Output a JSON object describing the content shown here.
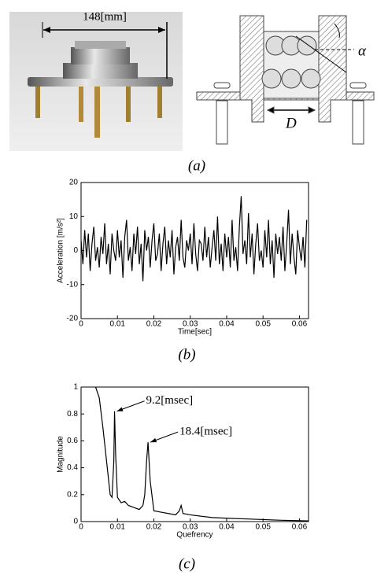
{
  "figure_a": {
    "dimension_label": "148[mm]",
    "angle_label": "α",
    "diameter_label": "D",
    "caption": "(a)"
  },
  "chart_data": [
    {
      "type": "line",
      "caption": "(b)",
      "xlabel": "Time[sec]",
      "ylabel": "Acceleration [m/s²]",
      "color": "#000000",
      "xlim": [
        0,
        0.0625
      ],
      "ylim": [
        -20,
        20
      ],
      "xticks": [
        0,
        0.01,
        0.02,
        0.03,
        0.04,
        0.05,
        0.06
      ],
      "yticks": [
        -20,
        -10,
        0,
        10,
        20
      ],
      "x": [
        0,
        0.0005,
        0.001,
        0.0015,
        0.002,
        0.0025,
        0.003,
        0.0035,
        0.004,
        0.0045,
        0.005,
        0.0055,
        0.006,
        0.0065,
        0.007,
        0.0075,
        0.008,
        0.0085,
        0.009,
        0.0095,
        0.01,
        0.0105,
        0.011,
        0.0115,
        0.012,
        0.0125,
        0.013,
        0.0135,
        0.014,
        0.0145,
        0.015,
        0.0155,
        0.016,
        0.0165,
        0.017,
        0.0175,
        0.018,
        0.0185,
        0.019,
        0.0195,
        0.02,
        0.0205,
        0.021,
        0.0215,
        0.022,
        0.0225,
        0.023,
        0.0235,
        0.024,
        0.0245,
        0.025,
        0.0255,
        0.026,
        0.0265,
        0.027,
        0.0275,
        0.028,
        0.0285,
        0.029,
        0.0295,
        0.03,
        0.0305,
        0.031,
        0.0315,
        0.032,
        0.0325,
        0.033,
        0.0335,
        0.034,
        0.0345,
        0.035,
        0.0355,
        0.036,
        0.0365,
        0.037,
        0.0375,
        0.038,
        0.0385,
        0.039,
        0.0395,
        0.04,
        0.0405,
        0.041,
        0.0415,
        0.042,
        0.0425,
        0.043,
        0.0435,
        0.044,
        0.0445,
        0.045,
        0.0455,
        0.046,
        0.0465,
        0.047,
        0.0475,
        0.048,
        0.0485,
        0.049,
        0.0495,
        0.05,
        0.0505,
        0.051,
        0.0515,
        0.052,
        0.0525,
        0.053,
        0.0535,
        0.054,
        0.0545,
        0.055,
        0.0555,
        0.056,
        0.0565,
        0.057,
        0.0575,
        0.058,
        0.0585,
        0.059,
        0.0595,
        0.06,
        0.0605,
        0.061,
        0.0615,
        0.062
      ],
      "values": [
        3,
        -4,
        6,
        -2,
        5,
        -6,
        2,
        7,
        -3,
        1,
        -5,
        4,
        -1,
        8,
        -4,
        2,
        -7,
        5,
        0,
        -3,
        6,
        -2,
        3,
        -8,
        4,
        9,
        -3,
        1,
        -6,
        5,
        -1,
        7,
        -4,
        2,
        -9,
        6,
        0,
        4,
        -5,
        3,
        8,
        -3,
        -1,
        5,
        -6,
        2,
        7,
        -4,
        3,
        -2,
        6,
        -7,
        1,
        4,
        -3,
        9,
        -2,
        -5,
        3,
        0,
        5,
        -4,
        8,
        -1,
        -6,
        3,
        2,
        -3,
        7,
        -2,
        4,
        -5,
        1,
        6,
        -3,
        10,
        -4,
        2,
        -6,
        5,
        -2,
        4,
        -5,
        9,
        -3,
        1,
        -6,
        7,
        16,
        -1,
        3,
        -4,
        11,
        -2,
        5,
        -7,
        2,
        8,
        -3,
        0,
        -5,
        6,
        -2,
        9,
        -4,
        3,
        -8,
        5,
        -1,
        4,
        -3,
        7,
        -6,
        2,
        12,
        -4,
        5,
        -2,
        -7,
        6,
        1,
        -3,
        4,
        -5,
        9
      ]
    },
    {
      "type": "line",
      "caption": "(c)",
      "xlabel": "Quefrency",
      "ylabel": "Magnitude",
      "color": "#000000",
      "xlim": [
        0,
        0.0625
      ],
      "ylim": [
        0,
        1
      ],
      "xticks": [
        0,
        0.01,
        0.02,
        0.03,
        0.04,
        0.05,
        0.06
      ],
      "yticks": [
        0,
        0.2,
        0.4,
        0.6,
        0.8,
        1
      ],
      "x": [
        0.004,
        0.005,
        0.006,
        0.007,
        0.008,
        0.0085,
        0.009,
        0.0092,
        0.0095,
        0.01,
        0.011,
        0.012,
        0.013,
        0.014,
        0.015,
        0.016,
        0.017,
        0.0175,
        0.018,
        0.0184,
        0.019,
        0.02,
        0.022,
        0.024,
        0.026,
        0.027,
        0.0275,
        0.028,
        0.03,
        0.033,
        0.036,
        0.04,
        0.045,
        0.05,
        0.055,
        0.0625
      ],
      "values": [
        1,
        0.92,
        0.7,
        0.45,
        0.2,
        0.18,
        0.45,
        0.82,
        0.5,
        0.18,
        0.14,
        0.15,
        0.12,
        0.11,
        0.1,
        0.09,
        0.12,
        0.2,
        0.45,
        0.59,
        0.3,
        0.08,
        0.07,
        0.06,
        0.05,
        0.08,
        0.12,
        0.06,
        0.05,
        0.04,
        0.03,
        0.025,
        0.02,
        0.015,
        0.01,
        0.005
      ],
      "annotations": [
        {
          "text": "9.2[msec]",
          "x": 0.0092,
          "y": 0.82
        },
        {
          "text": "18.4[msec]",
          "x": 0.0184,
          "y": 0.59
        }
      ]
    }
  ]
}
